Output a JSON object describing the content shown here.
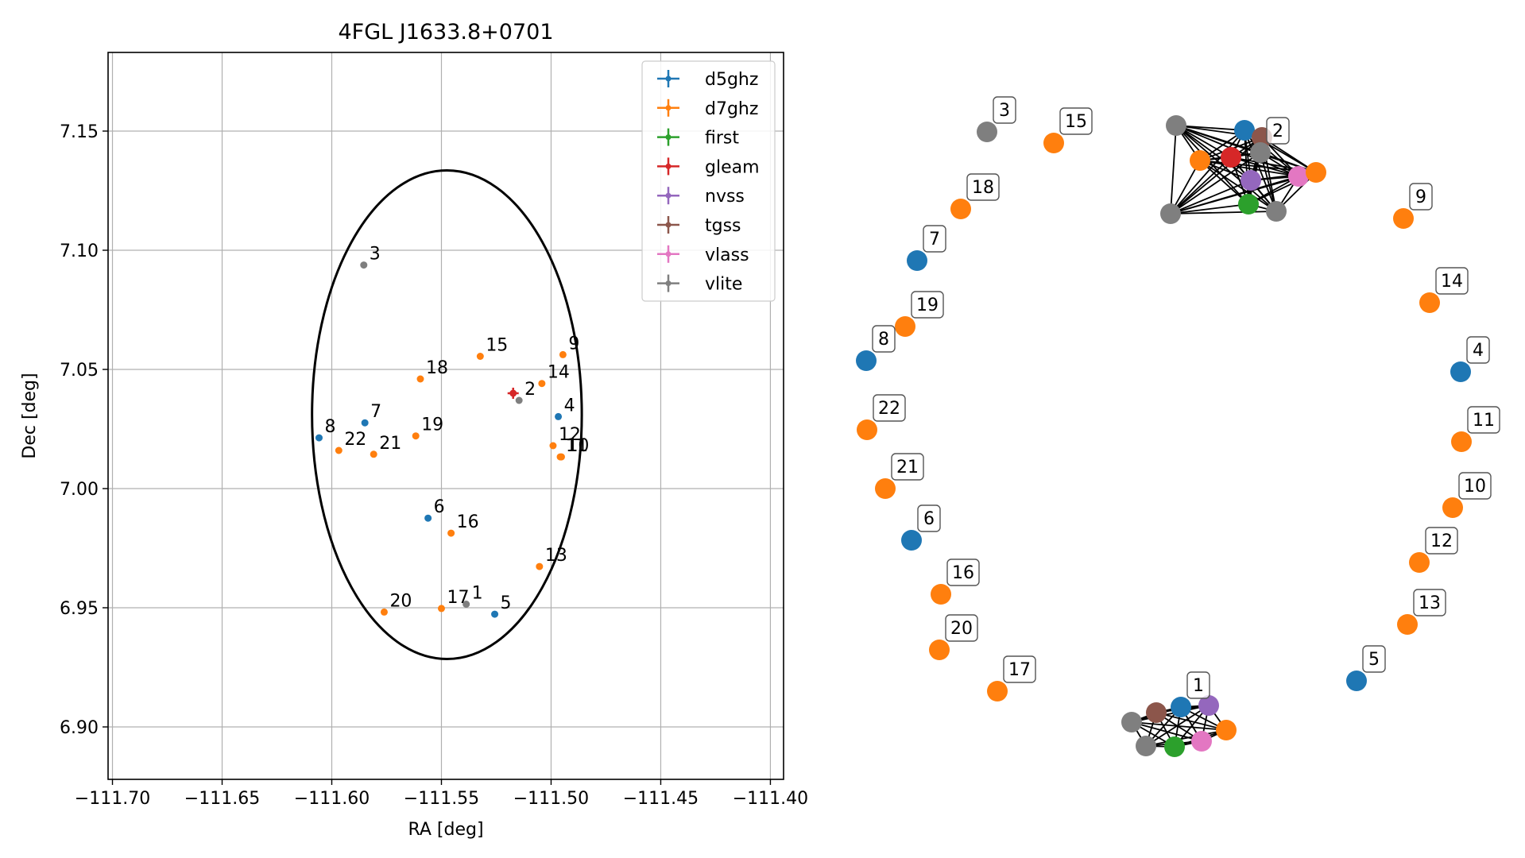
{
  "colors": {
    "d5ghz": "#1f77b4",
    "d7ghz": "#ff7f0e",
    "first": "#2ca02c",
    "gleam": "#d62728",
    "nvss": "#9467bd",
    "tgss": "#8c564b",
    "vlass": "#e377c2",
    "vlite": "#7f7f7f"
  },
  "chart_data": [
    {
      "type": "scatter",
      "title": "4FGL J1633.8+0701",
      "xlabel": "RA [deg]",
      "ylabel": "Dec [deg]",
      "xlim": [
        -111.702,
        -111.394
      ],
      "ylim": [
        6.878,
        7.183
      ],
      "xticks": [
        -111.7,
        -111.65,
        -111.6,
        -111.55,
        -111.5,
        -111.45,
        -111.4
      ],
      "xtick_labels": [
        "−111.70",
        "−111.65",
        "−111.60",
        "−111.55",
        "−111.50",
        "−111.45",
        "−111.40"
      ],
      "yticks": [
        6.9,
        6.95,
        7.0,
        7.05,
        7.1,
        7.15
      ],
      "ytick_labels": [
        "6.90",
        "6.95",
        "7.00",
        "7.05",
        "7.10",
        "7.15"
      ],
      "grid": true,
      "legend_position": "top-right",
      "legend": [
        "d5ghz",
        "d7ghz",
        "first",
        "gleam",
        "nvss",
        "tgss",
        "vlass",
        "vlite"
      ],
      "ellipse": {
        "center": [
          -111.5475,
          7.031
        ],
        "semi_axis_ra": 0.0615,
        "semi_axis_dec": 0.1025
      },
      "points": [
        {
          "x": -111.5854,
          "y": 7.0938,
          "survey": "vlite",
          "label": "3"
        },
        {
          "x": -111.5323,
          "y": 7.0555,
          "survey": "d7ghz",
          "label": "15"
        },
        {
          "x": -111.4946,
          "y": 7.0562,
          "survey": "d7ghz",
          "label": "9"
        },
        {
          "x": -111.5596,
          "y": 7.046,
          "survey": "d7ghz",
          "label": "18"
        },
        {
          "x": -111.5042,
          "y": 7.0441,
          "survey": "d7ghz",
          "label": "14"
        },
        {
          "x": -111.5146,
          "y": 7.037,
          "survey": "vlite",
          "label": "2"
        },
        {
          "x": -111.5173,
          "y": 7.04,
          "survey": "gleam",
          "label": ""
        },
        {
          "x": -111.4967,
          "y": 7.0302,
          "survey": "d5ghz",
          "label": "4"
        },
        {
          "x": -111.5849,
          "y": 7.0276,
          "survey": "d5ghz",
          "label": "7"
        },
        {
          "x": -111.6058,
          "y": 7.0213,
          "survey": "d5ghz",
          "label": "8"
        },
        {
          "x": -111.5617,
          "y": 7.0221,
          "survey": "d7ghz",
          "label": "19"
        },
        {
          "x": -111.5968,
          "y": 7.016,
          "survey": "d7ghz",
          "label": "22"
        },
        {
          "x": -111.5809,
          "y": 7.0144,
          "survey": "d7ghz",
          "label": "21"
        },
        {
          "x": -111.4991,
          "y": 7.018,
          "survey": "d7ghz",
          "label": "12"
        },
        {
          "x": -111.4958,
          "y": 7.0133,
          "survey": "d7ghz",
          "label": "11"
        },
        {
          "x": -111.4953,
          "y": 7.0133,
          "survey": "d7ghz",
          "label": "10"
        },
        {
          "x": -111.5561,
          "y": 6.9876,
          "survey": "d5ghz",
          "label": "6"
        },
        {
          "x": -111.5456,
          "y": 6.9813,
          "survey": "d7ghz",
          "label": "16"
        },
        {
          "x": -111.5053,
          "y": 6.9673,
          "survey": "d7ghz",
          "label": "13"
        },
        {
          "x": -111.5761,
          "y": 6.9482,
          "survey": "d7ghz",
          "label": "20"
        },
        {
          "x": -111.55,
          "y": 6.9497,
          "survey": "d7ghz",
          "label": "17"
        },
        {
          "x": -111.5387,
          "y": 6.9515,
          "survey": "vlite",
          "label": "1"
        },
        {
          "x": -111.5257,
          "y": 6.9473,
          "survey": "d5ghz",
          "label": "5"
        }
      ]
    },
    {
      "type": "network",
      "nodes": [
        {
          "id": "3",
          "survey": "vlite",
          "label": "3"
        },
        {
          "id": "15",
          "survey": "d7ghz",
          "label": "15"
        },
        {
          "id": "18",
          "survey": "d7ghz",
          "label": "18"
        },
        {
          "id": "7",
          "survey": "d5ghz",
          "label": "7"
        },
        {
          "id": "19",
          "survey": "d7ghz",
          "label": "19"
        },
        {
          "id": "8",
          "survey": "d5ghz",
          "label": "8"
        },
        {
          "id": "22",
          "survey": "d7ghz",
          "label": "22"
        },
        {
          "id": "21",
          "survey": "d7ghz",
          "label": "21"
        },
        {
          "id": "6",
          "survey": "d5ghz",
          "label": "6"
        },
        {
          "id": "16",
          "survey": "d7ghz",
          "label": "16"
        },
        {
          "id": "20",
          "survey": "d7ghz",
          "label": "20"
        },
        {
          "id": "17",
          "survey": "d7ghz",
          "label": "17"
        },
        {
          "id": "9",
          "survey": "d7ghz",
          "label": "9"
        },
        {
          "id": "14",
          "survey": "d7ghz",
          "label": "14"
        },
        {
          "id": "4",
          "survey": "d5ghz",
          "label": "4"
        },
        {
          "id": "11",
          "survey": "d7ghz",
          "label": "11"
        },
        {
          "id": "10",
          "survey": "d7ghz",
          "label": "10"
        },
        {
          "id": "12",
          "survey": "d7ghz",
          "label": "12"
        },
        {
          "id": "13",
          "survey": "d7ghz",
          "label": "13"
        },
        {
          "id": "5",
          "survey": "d5ghz",
          "label": "5"
        },
        {
          "id": "c2_vlite_a",
          "survey": "vlite",
          "label": ""
        },
        {
          "id": "c2_d5ghz",
          "survey": "d5ghz",
          "label": ""
        },
        {
          "id": "c2_tgss",
          "survey": "tgss",
          "label": ""
        },
        {
          "id": "c2_d7ghz_a",
          "survey": "d7ghz",
          "label": ""
        },
        {
          "id": "c2_gleam",
          "survey": "gleam",
          "label": ""
        },
        {
          "id": "c2_vlite_b",
          "survey": "vlite",
          "label": "2"
        },
        {
          "id": "c2_nvss",
          "survey": "nvss",
          "label": ""
        },
        {
          "id": "c2_vlass",
          "survey": "vlass",
          "label": ""
        },
        {
          "id": "c2_d7ghz_b",
          "survey": "d7ghz",
          "label": ""
        },
        {
          "id": "c2_first",
          "survey": "first",
          "label": ""
        },
        {
          "id": "c2_vlite_c",
          "survey": "vlite",
          "label": ""
        },
        {
          "id": "c2_vlite_d",
          "survey": "vlite",
          "label": ""
        },
        {
          "id": "c1_d5ghz",
          "survey": "d5ghz",
          "label": "1"
        },
        {
          "id": "c1_nvss",
          "survey": "nvss",
          "label": ""
        },
        {
          "id": "c1_tgss",
          "survey": "tgss",
          "label": ""
        },
        {
          "id": "c1_vlite_a",
          "survey": "vlite",
          "label": ""
        },
        {
          "id": "c1_d7ghz",
          "survey": "d7ghz",
          "label": ""
        },
        {
          "id": "c1_vlite_b",
          "survey": "vlite",
          "label": ""
        },
        {
          "id": "c1_vlass",
          "survey": "vlass",
          "label": ""
        },
        {
          "id": "c1_first",
          "survey": "first",
          "label": ""
        }
      ],
      "clusters": [
        [
          "c2_vlite_a",
          "c2_d5ghz",
          "c2_tgss",
          "c2_d7ghz_a",
          "c2_gleam",
          "c2_vlite_b",
          "c2_nvss",
          "c2_vlass",
          "c2_d7ghz_b",
          "c2_first",
          "c2_vlite_c",
          "c2_vlite_d"
        ],
        [
          "c1_d5ghz",
          "c1_nvss",
          "c1_tgss",
          "c1_vlite_a",
          "c1_d7ghz",
          "c1_vlite_b",
          "c1_vlass",
          "c1_first"
        ]
      ]
    }
  ]
}
